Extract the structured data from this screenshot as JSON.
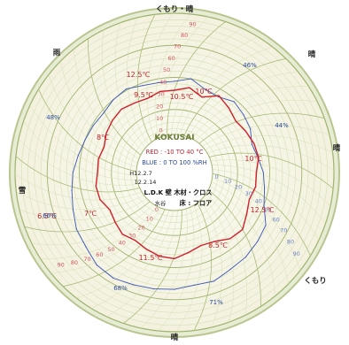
{
  "chart_data": {
    "type": "circular-chart",
    "title": "",
    "center_label": {
      "brand": "KOKUSAI",
      "red_range": "RED : -10 TO 40 °C",
      "blue_range": "BLUE : 0 TO 100 %RH",
      "location": "L.D.K 壁 木材・クロス",
      "floor": "床 : フロア",
      "note1": "H12.2.7",
      "note2": "12.2.14",
      "note3": "水谷"
    },
    "weather_words": [
      {
        "text": "くもり・晴"
      },
      {
        "text": "雨"
      },
      {
        "text": "晴"
      },
      {
        "text": "雪"
      },
      {
        "text": "晴"
      },
      {
        "text": "くもり"
      },
      {
        "text": "晴"
      }
    ],
    "temperature_labels": [
      "9.5℃",
      "12.5℃",
      "10℃",
      "10℃",
      "12.5℃",
      "11.5℃",
      "8.5℃",
      "8℃",
      "7℃",
      "6.5℃",
      "10.5℃"
    ],
    "humidity_labels": [
      "48%",
      "66%",
      "68%",
      "71%",
      "46%",
      "44%"
    ],
    "temperature_series": {
      "name": "",
      "unit": "°C",
      "range": [
        -10,
        40
      ],
      "values": [
        10.0,
        11.5,
        9.2,
        12.5,
        10.8,
        9.1,
        10.0,
        10.9,
        11.2,
        9.8,
        10.0,
        8.9,
        10.4,
        12.5,
        11.6,
        9.0,
        8.2,
        9.6,
        11.5,
        11.1,
        9.8,
        8.5,
        9.4,
        8.1,
        7.0,
        8.8,
        9.0,
        7.9,
        8.0,
        7.1,
        8.6,
        9.5,
        10.1,
        9.2,
        8.7,
        10.0
      ]
    },
    "humidity_series": {
      "name": "",
      "unit": "%RH",
      "range": [
        0,
        100
      ],
      "values": [
        47,
        50,
        45,
        44,
        48,
        46,
        44,
        40,
        42,
        45,
        47,
        50,
        58,
        60,
        62,
        63,
        66,
        65,
        67,
        68,
        69,
        71,
        70,
        66,
        64,
        60,
        57,
        55,
        52,
        50,
        49,
        48,
        50,
        51,
        48,
        47
      ]
    },
    "scale_labels": [
      "0",
      "10",
      "20",
      "30",
      "40",
      "50",
      "60",
      "70",
      "80",
      "90"
    ]
  }
}
